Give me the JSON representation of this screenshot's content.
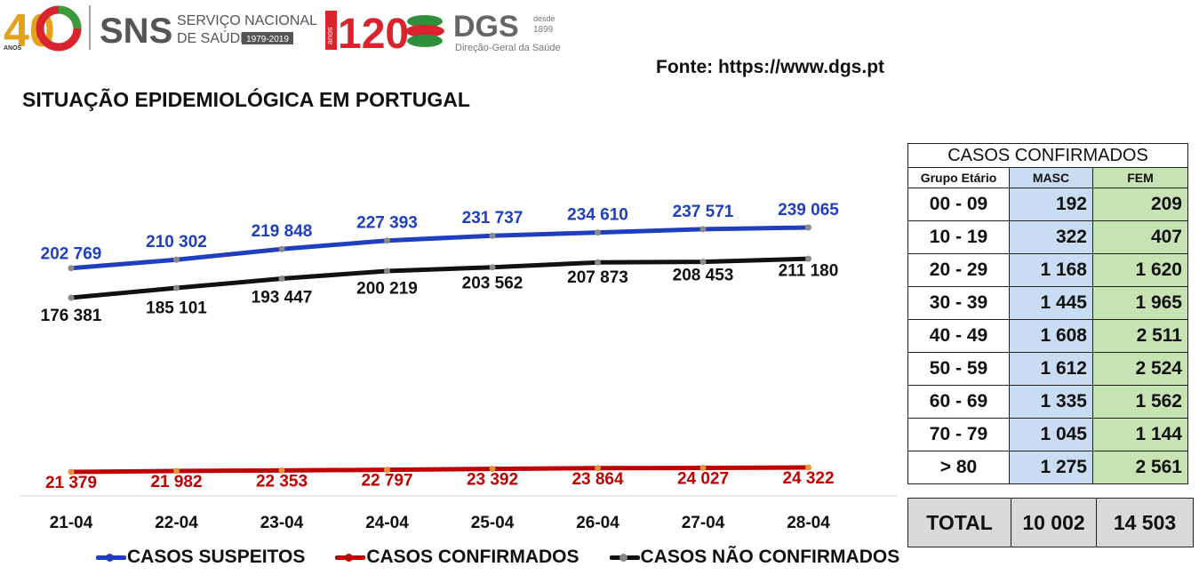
{
  "header": {
    "logo_40_text": "40",
    "logo_40_caption": "ANOS",
    "sns_text": "SNS",
    "sns_line1": "SERVIÇO NACIONAL",
    "sns_line2": "DE SAÚDE",
    "sns_years": "1979-2019",
    "logo_120_text": "120",
    "logo_120_caption": "anos",
    "dgs_text": "DGS",
    "dgs_since": "desde",
    "dgs_year": "1899",
    "dgs_full": "Direção-Geral da Saúde"
  },
  "source": "Fonte: https://www.dgs.pt",
  "title": "SITUAÇÃO EPIDEMIOLÓGICA EM PORTUGAL",
  "chart_data": {
    "type": "line",
    "title": "",
    "categories": [
      "21-04",
      "22-04",
      "23-04",
      "24-04",
      "25-04",
      "26-04",
      "27-04",
      "28-04"
    ],
    "series": [
      {
        "name": "CASOS SUSPEITOS",
        "color": "#1f3fbf",
        "values": [
          202769,
          210302,
          219848,
          227393,
          231737,
          234610,
          237571,
          239065
        ],
        "labels": [
          "202 769",
          "210 302",
          "219 848",
          "227 393",
          "231 737",
          "234 610",
          "237 571",
          "239 065"
        ]
      },
      {
        "name": "CASOS CONFIRMADOS",
        "color": "#c00000",
        "values": [
          21379,
          21982,
          22353,
          22797,
          23392,
          23864,
          24027,
          24322
        ],
        "labels": [
          "21 379",
          "21 982",
          "22 353",
          "22 797",
          "23 392",
          "23 864",
          "24 027",
          "24 322"
        ]
      },
      {
        "name": "CASOS NÃO CONFIRMADOS",
        "color": "#111111",
        "values": [
          176381,
          185101,
          193447,
          200219,
          203562,
          207873,
          208453,
          211180
        ],
        "labels": [
          "176 381",
          "185 101",
          "193 447",
          "200 219",
          "203 562",
          "207 873",
          "208 453",
          "211 180"
        ]
      }
    ],
    "ylim": [
      0,
      240000
    ],
    "grid": false,
    "legend_position": "bottom"
  },
  "table": {
    "title": "CASOS CONFIRMADOS",
    "headers": [
      "Grupo Etário",
      "MASC",
      "FEM"
    ],
    "rows": [
      {
        "group": "00 - 09",
        "masc": "192",
        "fem": "209"
      },
      {
        "group": "10 - 19",
        "masc": "322",
        "fem": "407"
      },
      {
        "group": "20 - 29",
        "masc": "1 168",
        "fem": "1 620"
      },
      {
        "group": "30 - 39",
        "masc": "1 445",
        "fem": "1 965"
      },
      {
        "group": "40 - 49",
        "masc": "1 608",
        "fem": "2 511"
      },
      {
        "group": "50 - 59",
        "masc": "1 612",
        "fem": "2 524"
      },
      {
        "group": "60 - 69",
        "masc": "1 335",
        "fem": "1 562"
      },
      {
        "group": "70 - 79",
        "masc": "1 045",
        "fem": "1 144"
      },
      {
        "group": "> 80",
        "masc": "1 275",
        "fem": "2 561"
      }
    ],
    "total_label": "TOTAL",
    "total_masc": "10 002",
    "total_fem": "14 503"
  }
}
